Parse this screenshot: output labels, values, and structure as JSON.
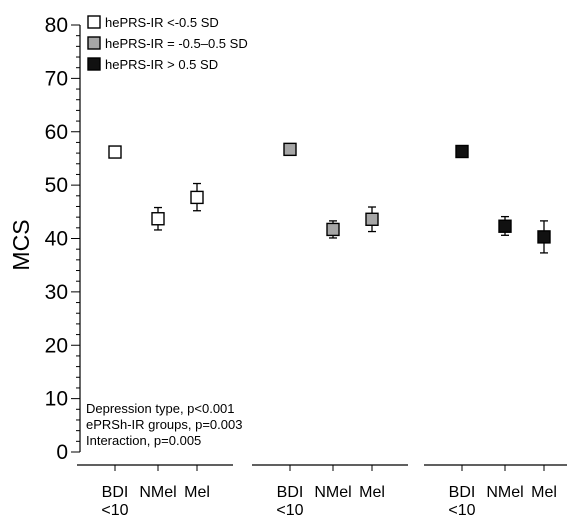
{
  "chart_data": {
    "type": "scatter",
    "ylabel": "MCS",
    "xlabel": "",
    "ylim": [
      0,
      80
    ],
    "yticks": [
      0,
      10,
      20,
      30,
      40,
      50,
      60,
      70,
      80
    ],
    "error_bars": true,
    "grid": false,
    "legend_placement": "top-left",
    "groups": [
      {
        "series": "hePRS-IR <-0.5 SD",
        "categories": [
          "BDI\n<10",
          "NMel",
          "Mel"
        ]
      },
      {
        "series": "hePRS-IR = -0.5–0.5 SD",
        "categories": [
          "BDI\n<10",
          "NMel",
          "Mel"
        ]
      },
      {
        "series": "hePRS-IR > 0.5 SD",
        "categories": [
          "BDI\n<10",
          "NMel",
          "Mel"
        ]
      }
    ],
    "series": [
      {
        "name": "hePRS-IR <-0.5 SD",
        "color": "#ffffff",
        "points": [
          {
            "category": "BDI <10",
            "y": 56.2,
            "err_low": 56.2,
            "err_high": 56.2
          },
          {
            "category": "NMel",
            "y": 43.7,
            "err_low": 41.6,
            "err_high": 45.8
          },
          {
            "category": "Mel",
            "y": 47.7,
            "err_low": 45.2,
            "err_high": 50.3
          }
        ]
      },
      {
        "name": "hePRS-IR = -0.5–0.5 SD",
        "color": "#a6a6a6",
        "points": [
          {
            "category": "BDI <10",
            "y": 56.7,
            "err_low": 56.7,
            "err_high": 56.7
          },
          {
            "category": "NMel",
            "y": 41.7,
            "err_low": 40.1,
            "err_high": 43.3
          },
          {
            "category": "Mel",
            "y": 43.6,
            "err_low": 41.3,
            "err_high": 45.9
          }
        ]
      },
      {
        "name": "hePRS-IR > 0.5 SD",
        "color": "#111111",
        "points": [
          {
            "category": "BDI <10",
            "y": 56.3,
            "err_low": 56.3,
            "err_high": 56.3
          },
          {
            "category": "NMel",
            "y": 42.3,
            "err_low": 40.6,
            "err_high": 44.1
          },
          {
            "category": "Mel",
            "y": 40.3,
            "err_low": 37.3,
            "err_high": 43.3
          }
        ]
      }
    ],
    "annotations": [
      "Depression type, p<0.001",
      "ePRSh-IR groups, p=0.003",
      "Interaction, p=0.005"
    ]
  }
}
